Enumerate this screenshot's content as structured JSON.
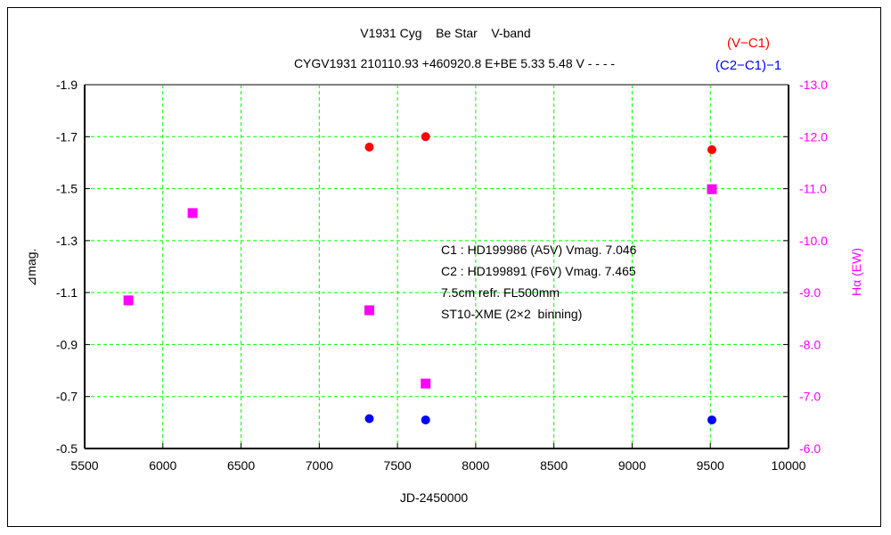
{
  "chart_data": {
    "type": "scatter",
    "title": "V1931 Cyg    Be Star    V-band",
    "subtitle": "CYGV1931 210110.93 +460920.8 E+BE 5.33 5.48 V - - - -",
    "xlabel": "JD-2450000",
    "ylabel": "⊿mag.",
    "y2label": "Hα (EW)",
    "xlim": [
      5500,
      10000
    ],
    "ylim": [
      -1.9,
      -0.5
    ],
    "y_inverted": true,
    "y2lim": [
      -13.0,
      -6.0
    ],
    "y2_inverted": true,
    "grid": true,
    "x_ticks": [
      "5500",
      "6000",
      "6500",
      "7000",
      "7500",
      "8000",
      "8500",
      "9000",
      "9500",
      "10000"
    ],
    "y_ticks": [
      "-1.9",
      "-1.7",
      "-1.5",
      "-1.3",
      "-1.1",
      "-0.9",
      "-0.7",
      "-0.5"
    ],
    "y2_ticks": [
      "-13.0",
      "-12.0",
      "-11.0",
      "-10.0",
      "-9.0",
      "-8.0",
      "-7.0",
      "-6.0"
    ],
    "legend_position": "top-right",
    "series": [
      {
        "name": "(V−C1)",
        "axis": "left",
        "marker": "circle",
        "color": "#ff0000",
        "x": [
          7320,
          7680,
          9510
        ],
        "y": [
          -1.66,
          -1.7,
          -1.65
        ]
      },
      {
        "name": "(C2−C1)−1",
        "axis": "left",
        "marker": "circle",
        "color": "#0000ff",
        "x": [
          7320,
          7680,
          9510
        ],
        "y": [
          -0.615,
          -0.61,
          -0.61
        ]
      },
      {
        "name": "Hα",
        "axis": "right",
        "marker": "square",
        "color": "#ff00ff",
        "x": [
          5780,
          6190,
          7320,
          7680,
          9510
        ],
        "y": [
          -8.85,
          -10.53,
          -8.66,
          -7.25,
          -10.99
        ]
      }
    ],
    "annotations": [
      "C1 : HD199986 (A5V) Vmag. 7.046",
      "C2 : HD199891 (F6V) Vmag. 7.465",
      "7.5cm refr. FL500mm",
      "ST10-XME (2×2  binning)"
    ],
    "colors": {
      "grid": "#00ff00",
      "y2axis": "#ff00ff"
    }
  }
}
